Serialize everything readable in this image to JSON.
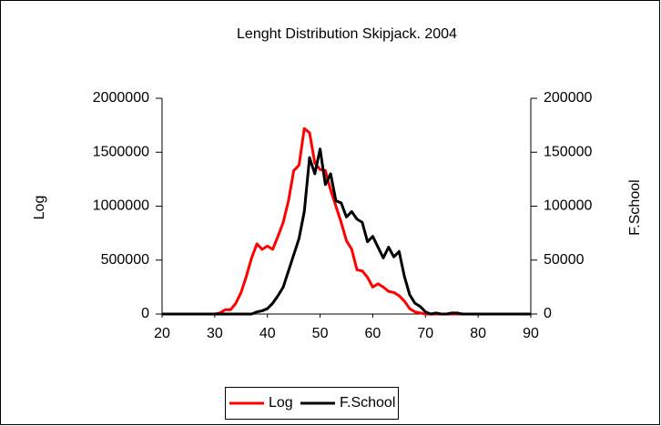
{
  "chart_data": {
    "type": "line",
    "title": "Lenght Distribution Skipjack. 2004",
    "y_label": "Log",
    "y2_label": "F.School",
    "x": [
      20,
      21,
      22,
      23,
      24,
      25,
      26,
      27,
      28,
      29,
      30,
      31,
      32,
      33,
      34,
      35,
      36,
      37,
      38,
      39,
      40,
      41,
      42,
      43,
      44,
      45,
      46,
      47,
      48,
      49,
      50,
      51,
      52,
      53,
      54,
      55,
      56,
      57,
      58,
      59,
      60,
      61,
      62,
      63,
      64,
      65,
      66,
      67,
      68,
      69,
      70,
      71,
      72,
      73,
      74,
      75,
      76,
      77,
      78,
      79,
      80,
      81,
      82,
      83,
      84,
      85,
      86,
      87,
      88,
      89,
      90
    ],
    "series": [
      {
        "name": "Log",
        "color": "#ff0000",
        "axis": "y",
        "values": [
          0,
          0,
          0,
          0,
          0,
          0,
          0,
          0,
          0,
          0,
          0,
          10000,
          40000,
          40000,
          100000,
          200000,
          350000,
          520000,
          650000,
          600000,
          630000,
          600000,
          720000,
          850000,
          1050000,
          1330000,
          1380000,
          1720000,
          1680000,
          1400000,
          1340000,
          1330000,
          1150000,
          1000000,
          850000,
          680000,
          600000,
          410000,
          400000,
          340000,
          250000,
          280000,
          250000,
          210000,
          200000,
          170000,
          120000,
          50000,
          20000,
          10000,
          0,
          0,
          0,
          0,
          0,
          0,
          0,
          0,
          0,
          0,
          0,
          0,
          0,
          0,
          0,
          0,
          0,
          0,
          0,
          0,
          0
        ]
      },
      {
        "name": "F.School",
        "color": "#000000",
        "axis": "y2",
        "values": [
          0,
          0,
          0,
          0,
          0,
          0,
          0,
          0,
          0,
          0,
          0,
          0,
          0,
          0,
          0,
          0,
          0,
          0,
          2000,
          3000,
          5000,
          10000,
          17000,
          25000,
          40000,
          55000,
          70000,
          95000,
          145000,
          130000,
          153000,
          120000,
          130000,
          105000,
          103000,
          90000,
          95000,
          88000,
          85000,
          67000,
          72000,
          62000,
          52000,
          62000,
          53000,
          58000,
          35000,
          18000,
          10000,
          7000,
          2000,
          0,
          1000,
          0,
          0,
          1000,
          1000,
          0,
          0,
          0,
          0,
          0,
          0,
          0,
          0,
          0,
          0,
          0,
          0,
          0,
          0
        ]
      }
    ],
    "xlim": [
      20,
      90
    ],
    "xticks": [
      20,
      30,
      40,
      50,
      60,
      70,
      80,
      90
    ],
    "ylim": [
      0,
      2000000
    ],
    "yticks": [
      0,
      500000,
      1000000,
      1500000,
      2000000
    ],
    "y2lim": [
      0,
      200000
    ],
    "y2ticks": [
      0,
      50000,
      100000,
      150000,
      200000
    ],
    "grid": false,
    "legend": "bottom"
  }
}
